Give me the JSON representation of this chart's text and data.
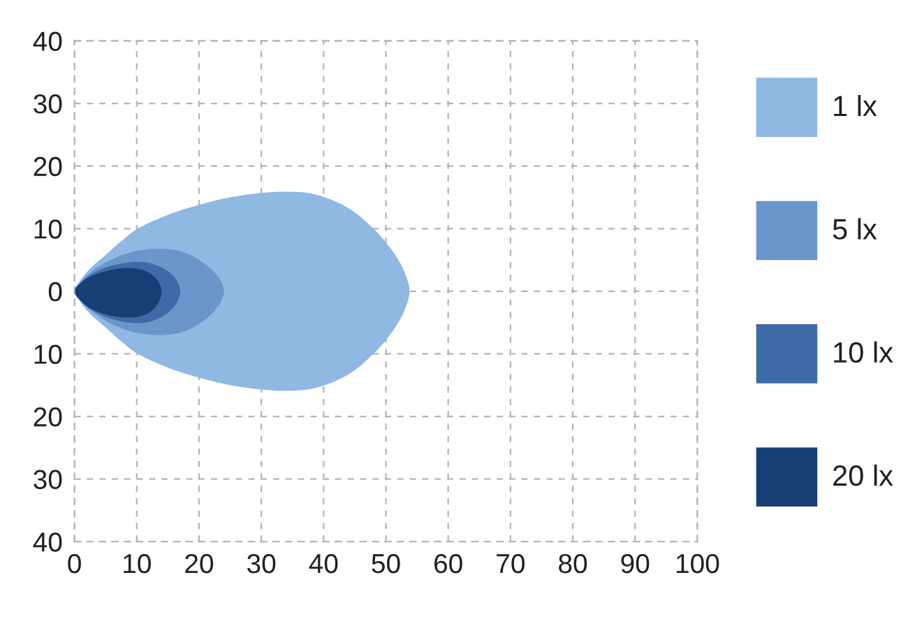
{
  "chart_data": {
    "type": "area",
    "xlim": [
      0,
      100
    ],
    "xticks": [
      0,
      10,
      20,
      30,
      40,
      50,
      60,
      70,
      80,
      90,
      100
    ],
    "ylim": [
      -40,
      40
    ],
    "yticks": [
      40,
      30,
      20,
      10,
      0,
      {
        "value": -10,
        "label": "10"
      },
      {
        "value": -20,
        "label": "20"
      },
      {
        "value": -30,
        "label": "30"
      },
      {
        "value": -40,
        "label": "40"
      }
    ],
    "grid": true,
    "legend": "right",
    "series": [
      {
        "name": "1 lx",
        "color": "#8fb8e3",
        "x": [
          0,
          1,
          2.5,
          5,
          7.5,
          10,
          15,
          20,
          25,
          30,
          34,
          38,
          42,
          45,
          48,
          50,
          52,
          53,
          53.8
        ],
        "values": [
          null,
          null,
          null,
          null,
          null,
          null,
          null,
          null,
          null,
          null,
          null,
          null,
          null,
          null,
          null,
          null,
          null,
          null,
          null
        ],
        "upper": [
          0,
          1.8,
          3.6,
          5.8,
          8.0,
          9.9,
          12.2,
          13.8,
          15.0,
          15.7,
          15.9,
          15.6,
          14.3,
          12.6,
          10,
          7.8,
          5,
          3,
          0
        ],
        "lower": [
          0,
          -1.8,
          -3.6,
          -5.8,
          -8.0,
          -9.9,
          -12.2,
          -13.8,
          -15.0,
          -15.7,
          -15.9,
          -15.6,
          -14.3,
          -12.6,
          -10,
          -7.8,
          -5,
          -3,
          0
        ]
      },
      {
        "name": "5 lx",
        "color": "#6a96cb",
        "x": [
          0,
          1,
          2.5,
          5,
          8,
          11,
          14,
          17,
          19,
          21,
          22.5,
          23.5,
          24
        ],
        "values": [
          null,
          null,
          null,
          null,
          null,
          null,
          null,
          null,
          null,
          null,
          null,
          null,
          null
        ],
        "upper": [
          0,
          1.5,
          3,
          4.6,
          5.9,
          6.6,
          6.8,
          6.4,
          5.6,
          4.3,
          3,
          1.6,
          0
        ],
        "lower": [
          0,
          -1.5,
          -3,
          -4.7,
          -6.1,
          -6.8,
          -7.0,
          -6.6,
          -5.8,
          -4.5,
          -3.1,
          -1.7,
          0
        ]
      },
      {
        "name": "10 lx",
        "color": "#3e6aa8",
        "x": [
          0,
          1,
          2.5,
          5,
          8,
          10,
          12,
          14,
          15.5,
          16.5,
          17
        ],
        "values": [
          null,
          null,
          null,
          null,
          null,
          null,
          null,
          null,
          null,
          null,
          null
        ],
        "upper": [
          0,
          1.4,
          2.6,
          3.8,
          4.5,
          4.7,
          4.5,
          3.8,
          2.8,
          1.6,
          0
        ],
        "lower": [
          0,
          -1.5,
          -2.8,
          -4.1,
          -4.9,
          -5.1,
          -4.9,
          -4.1,
          -3.0,
          -1.7,
          0
        ]
      },
      {
        "name": "20 lx",
        "color": "#173f75",
        "x": [
          0,
          1,
          2.5,
          5,
          7,
          9,
          11,
          12.5,
          13.5,
          14
        ],
        "values": [
          null,
          null,
          null,
          null,
          null,
          null,
          null,
          null,
          null,
          null
        ],
        "upper": [
          0,
          1.3,
          2.3,
          3.2,
          3.6,
          3.7,
          3.4,
          2.6,
          1.5,
          0
        ],
        "lower": [
          0,
          -1.5,
          -2.7,
          -3.7,
          -4.1,
          -4.2,
          -3.9,
          -3.0,
          -1.8,
          0
        ]
      }
    ]
  }
}
